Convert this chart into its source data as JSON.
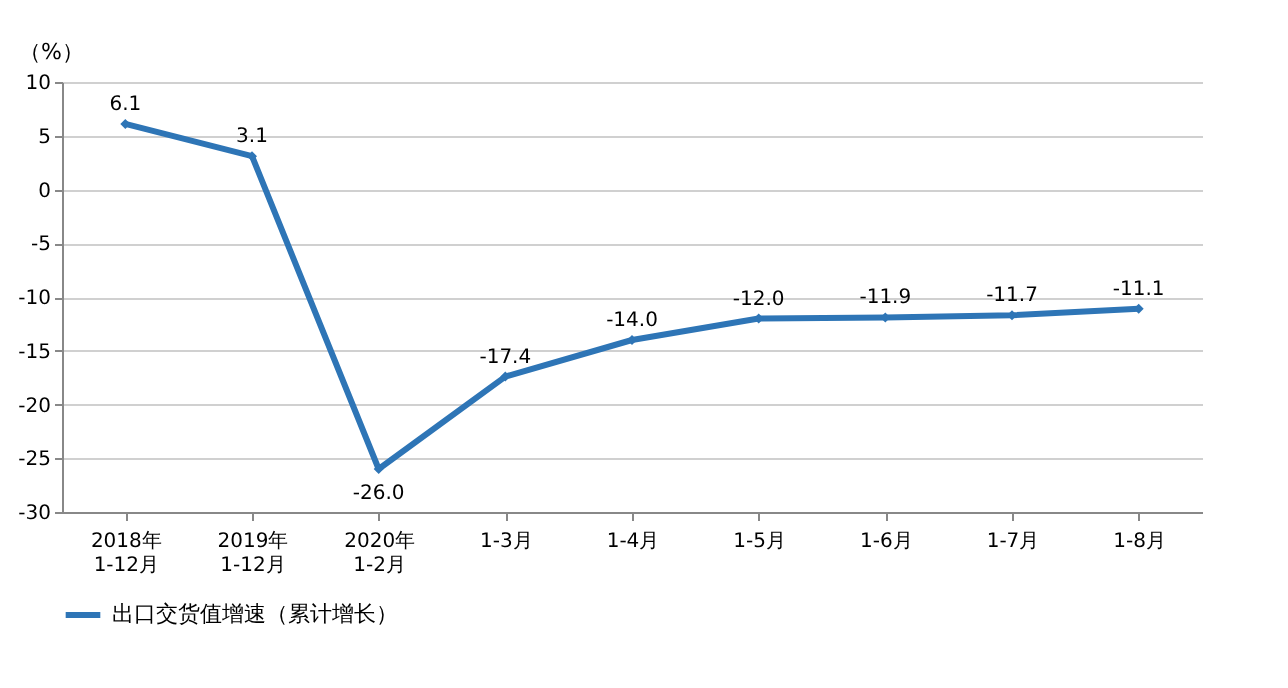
{
  "chart_data": {
    "type": "line",
    "ylabel": "（%）",
    "categories": [
      "2018年\n1-12月",
      "2019年\n1-12月",
      "2020年\n1-2月",
      "1-3月",
      "1-4月",
      "1-5月",
      "1-6月",
      "1-7月",
      "1-8月"
    ],
    "series": [
      {
        "name": "出口交货值增速（累计增长）",
        "color": "#2e75b6",
        "values": [
          6.1,
          3.1,
          -26.0,
          -17.4,
          -14.0,
          -12.0,
          -11.9,
          -11.7,
          -11.1
        ],
        "value_labels": [
          "6.1",
          "3.1",
          "-26.0",
          "-17.4",
          "-14.0",
          "-12.0",
          "-11.9",
          "-11.7",
          "-11.1"
        ]
      }
    ],
    "ylim": [
      -30,
      10
    ],
    "yticks": [
      -30,
      -25,
      -20,
      -15,
      -10,
      -5,
      0,
      5,
      10
    ],
    "grid": "y",
    "legend": "bottom",
    "marker": "diamond",
    "line_style": "solid"
  }
}
